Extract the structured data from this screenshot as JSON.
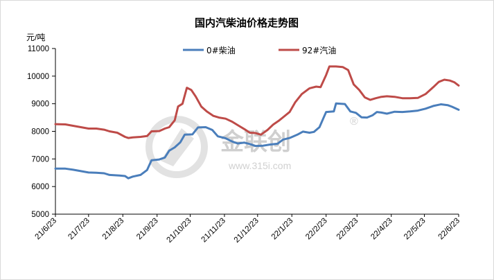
{
  "chart_data": {
    "type": "line",
    "title": "国内汽柴油价格走势图",
    "ylabel": "元/吨",
    "ylim": [
      5000,
      11000
    ],
    "yticks": [
      5000,
      6000,
      7000,
      8000,
      9000,
      10000,
      11000
    ],
    "xlim": [
      "2021-06-23",
      "2022-06-23"
    ],
    "xticks": [
      "21/6/23",
      "21/7/23",
      "21/8/23",
      "21/9/23",
      "21/10/23",
      "21/11/23",
      "21/12/23",
      "22/1/23",
      "22/2/23",
      "22/3/23",
      "22/4/23",
      "22/5/23",
      "22/6/23"
    ],
    "grid": false,
    "legend_position": "top-center",
    "colors": {
      "diesel": "#4a7ebb",
      "gasoline": "#be4b48",
      "axis": "#000000",
      "watermark": "#d0d0d0"
    },
    "series": [
      {
        "name": "0#柴油",
        "points": [
          [
            "2021-06-23",
            6650
          ],
          [
            "2021-07-02",
            6650
          ],
          [
            "2021-07-09",
            6610
          ],
          [
            "2021-07-16",
            6560
          ],
          [
            "2021-07-23",
            6510
          ],
          [
            "2021-07-30",
            6500
          ],
          [
            "2021-08-06",
            6480
          ],
          [
            "2021-08-11",
            6420
          ],
          [
            "2021-08-20",
            6400
          ],
          [
            "2021-08-25",
            6380
          ],
          [
            "2021-08-28",
            6300
          ],
          [
            "2021-09-01",
            6360
          ],
          [
            "2021-09-08",
            6420
          ],
          [
            "2021-09-14",
            6600
          ],
          [
            "2021-09-18",
            6950
          ],
          [
            "2021-09-25",
            6980
          ],
          [
            "2021-09-30",
            7050
          ],
          [
            "2021-10-04",
            7300
          ],
          [
            "2021-10-09",
            7420
          ],
          [
            "2021-10-14",
            7600
          ],
          [
            "2021-10-18",
            7880
          ],
          [
            "2021-10-25",
            7890
          ],
          [
            "2021-10-30",
            8140
          ],
          [
            "2021-11-06",
            8150
          ],
          [
            "2021-11-12",
            8050
          ],
          [
            "2021-11-17",
            7820
          ],
          [
            "2021-11-24",
            7750
          ],
          [
            "2021-11-30",
            7630
          ],
          [
            "2021-12-05",
            7560
          ],
          [
            "2021-12-11",
            7590
          ],
          [
            "2021-12-16",
            7540
          ],
          [
            "2021-12-21",
            7470
          ],
          [
            "2021-12-28",
            7480
          ],
          [
            "2022-01-03",
            7520
          ],
          [
            "2022-01-10",
            7550
          ],
          [
            "2022-01-15",
            7700
          ],
          [
            "2022-01-21",
            7760
          ],
          [
            "2022-01-28",
            7880
          ],
          [
            "2022-02-02",
            7990
          ],
          [
            "2022-02-08",
            7950
          ],
          [
            "2022-02-12",
            7980
          ],
          [
            "2022-02-17",
            8150
          ],
          [
            "2022-02-21",
            8520
          ],
          [
            "2022-02-23",
            8700
          ],
          [
            "2022-03-02",
            8720
          ],
          [
            "2022-03-04",
            9010
          ],
          [
            "2022-03-12",
            8990
          ],
          [
            "2022-03-17",
            8720
          ],
          [
            "2022-03-22",
            8670
          ],
          [
            "2022-03-27",
            8510
          ],
          [
            "2022-04-01",
            8500
          ],
          [
            "2022-04-06",
            8580
          ],
          [
            "2022-04-10",
            8700
          ],
          [
            "2022-04-14",
            8680
          ],
          [
            "2022-04-19",
            8640
          ],
          [
            "2022-04-26",
            8710
          ],
          [
            "2022-05-03",
            8700
          ],
          [
            "2022-05-10",
            8720
          ],
          [
            "2022-05-17",
            8750
          ],
          [
            "2022-05-24",
            8820
          ],
          [
            "2022-05-31",
            8920
          ],
          [
            "2022-06-07",
            8980
          ],
          [
            "2022-06-13",
            8950
          ],
          [
            "2022-06-17",
            8890
          ],
          [
            "2022-06-23",
            8780
          ]
        ]
      },
      {
        "name": "92#汽油",
        "points": [
          [
            "2021-06-23",
            8260
          ],
          [
            "2021-07-02",
            8250
          ],
          [
            "2021-07-09",
            8200
          ],
          [
            "2021-07-16",
            8150
          ],
          [
            "2021-07-23",
            8100
          ],
          [
            "2021-07-30",
            8100
          ],
          [
            "2021-08-06",
            8060
          ],
          [
            "2021-08-11",
            8000
          ],
          [
            "2021-08-18",
            7950
          ],
          [
            "2021-08-25",
            7800
          ],
          [
            "2021-08-28",
            7760
          ],
          [
            "2021-09-01",
            7780
          ],
          [
            "2021-09-08",
            7800
          ],
          [
            "2021-09-14",
            7830
          ],
          [
            "2021-09-18",
            8000
          ],
          [
            "2021-09-25",
            8010
          ],
          [
            "2021-09-30",
            8100
          ],
          [
            "2021-10-04",
            8150
          ],
          [
            "2021-10-09",
            8400
          ],
          [
            "2021-10-12",
            8900
          ],
          [
            "2021-10-16",
            9000
          ],
          [
            "2021-10-20",
            9580
          ],
          [
            "2021-10-24",
            9500
          ],
          [
            "2021-10-28",
            9260
          ],
          [
            "2021-11-02",
            8900
          ],
          [
            "2021-11-07",
            8720
          ],
          [
            "2021-11-13",
            8560
          ],
          [
            "2021-11-18",
            8500
          ],
          [
            "2021-11-24",
            8460
          ],
          [
            "2021-11-30",
            8350
          ],
          [
            "2021-12-06",
            8200
          ],
          [
            "2021-12-11",
            8080
          ],
          [
            "2021-12-16",
            7950
          ],
          [
            "2021-12-21",
            7940
          ],
          [
            "2021-12-26",
            7880
          ],
          [
            "2022-01-01",
            8050
          ],
          [
            "2022-01-06",
            8240
          ],
          [
            "2022-01-11",
            8380
          ],
          [
            "2022-01-16",
            8540
          ],
          [
            "2022-01-21",
            8700
          ],
          [
            "2022-01-26",
            9050
          ],
          [
            "2022-02-01",
            9350
          ],
          [
            "2022-02-08",
            9560
          ],
          [
            "2022-02-14",
            9620
          ],
          [
            "2022-02-18",
            9600
          ],
          [
            "2022-02-23",
            10040
          ],
          [
            "2022-02-26",
            10350
          ],
          [
            "2022-03-04",
            10350
          ],
          [
            "2022-03-10",
            10330
          ],
          [
            "2022-03-15",
            10220
          ],
          [
            "2022-03-20",
            9700
          ],
          [
            "2022-03-25",
            9500
          ],
          [
            "2022-03-30",
            9230
          ],
          [
            "2022-04-04",
            9140
          ],
          [
            "2022-04-09",
            9200
          ],
          [
            "2022-04-14",
            9250
          ],
          [
            "2022-04-19",
            9270
          ],
          [
            "2022-04-26",
            9250
          ],
          [
            "2022-05-03",
            9200
          ],
          [
            "2022-05-10",
            9200
          ],
          [
            "2022-05-17",
            9210
          ],
          [
            "2022-05-24",
            9350
          ],
          [
            "2022-05-31",
            9600
          ],
          [
            "2022-06-05",
            9790
          ],
          [
            "2022-06-10",
            9870
          ],
          [
            "2022-06-15",
            9840
          ],
          [
            "2022-06-19",
            9780
          ],
          [
            "2022-06-23",
            9660
          ]
        ]
      }
    ],
    "watermark": {
      "brand": "金联创",
      "url": "www.315i.com",
      "mark": "®"
    }
  }
}
